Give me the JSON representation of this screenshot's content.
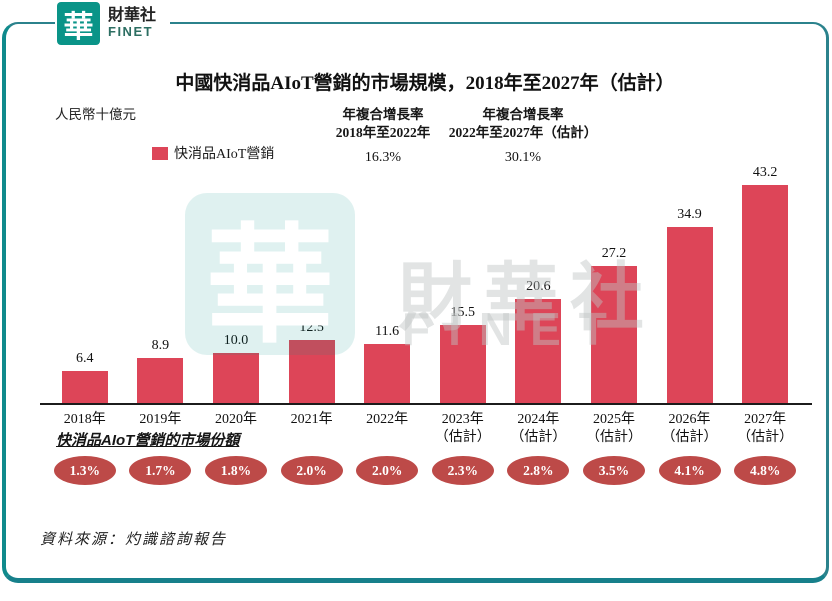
{
  "brand": {
    "logo_char": "華",
    "name_zh": "財華社",
    "name_en": "FINET"
  },
  "title": "中國快消品AIoT營銷的市場規模，2018年至2027年（估計）",
  "unit_label": "人民幣十億元",
  "legend": {
    "label": "快消品AIoT營銷"
  },
  "cagr": [
    {
      "line1": "年複合增長率",
      "line2": "2018年至2022年",
      "value": "16.3%"
    },
    {
      "line1": "年複合增長率",
      "line2": "2022年至2027年（估計）",
      "value": "30.1%"
    }
  ],
  "chart_data": {
    "type": "bar",
    "title": "中國快消品AIoT營銷的市場規模，2018年至2027年（估計）",
    "ylabel": "人民幣十億元",
    "xlabel": "",
    "ylim": [
      0,
      45
    ],
    "grid": false,
    "legend_position": "top-left",
    "series_name": "快消品AIoT營銷",
    "bar_color": "#dd4558",
    "categories": [
      {
        "year": "2018年",
        "note": ""
      },
      {
        "year": "2019年",
        "note": ""
      },
      {
        "year": "2020年",
        "note": ""
      },
      {
        "year": "2021年",
        "note": ""
      },
      {
        "year": "2022年",
        "note": ""
      },
      {
        "year": "2023年",
        "note": "（估計）"
      },
      {
        "year": "2024年",
        "note": "（估計）"
      },
      {
        "year": "2025年",
        "note": "（估計）"
      },
      {
        "year": "2026年",
        "note": "（估計）"
      },
      {
        "year": "2027年",
        "note": "（估計）"
      }
    ],
    "values": [
      6.4,
      8.9,
      10.0,
      12.5,
      11.6,
      15.5,
      20.6,
      27.2,
      34.9,
      43.2
    ],
    "market_share": [
      "1.3%",
      "1.7%",
      "1.8%",
      "2.0%",
      "2.0%",
      "2.3%",
      "2.8%",
      "3.5%",
      "4.1%",
      "4.8%"
    ]
  },
  "share_section": {
    "heading": "快消品AIoT營銷的市場份額"
  },
  "source": "資料來源：灼識諮詢報告",
  "watermark": {
    "logo_char": "華",
    "text_zh": "財華社",
    "text_en": "FINET"
  },
  "colors": {
    "bar": "#dd4558",
    "share_oval": "#bd4a48",
    "logo_teal": "#0a9488",
    "frame_teal": "#17808b"
  }
}
